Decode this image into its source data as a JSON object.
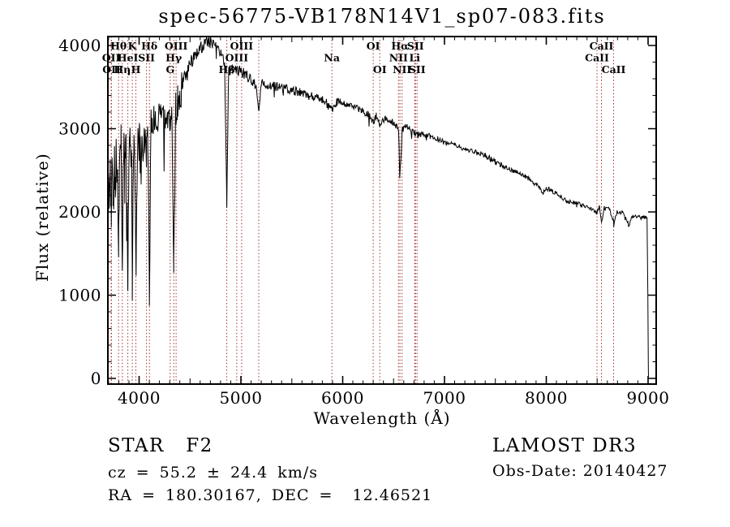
{
  "plot": {
    "title": "spec-56775-VB178N14V1_sp07-083.fits",
    "xlabel": "Wavelength (Å)",
    "ylabel": "Flux (relative)"
  },
  "annotations": {
    "class_label": "STAR   F2",
    "cz_label": "cz = 55.2 ± 24.4 km/s",
    "radec_label": "RA = 180.30167, DEC =  12.46521",
    "survey_label": "LAMOST DR3",
    "obsdate_label": "Obs-Date: 20140427"
  },
  "chart_data": {
    "type": "line",
    "title": "spec-56775-VB178N14V1_sp07-083.fits",
    "xlabel": "Wavelength (Å)",
    "ylabel": "Flux (relative)",
    "x_range": [
      3693,
      9080
    ],
    "y_range": [
      -68,
      4107
    ],
    "x_ticks": [
      4000,
      5000,
      6000,
      7000,
      8000,
      9000
    ],
    "x_minor_tick_step": 100,
    "y_ticks": [
      0,
      1000,
      2000,
      3000,
      4000
    ],
    "y_minor_tick_step": 200,
    "grid": false,
    "legend": false,
    "line_marker_color": "#a03030",
    "series": [
      {
        "name": "flux",
        "color": "#000000",
        "points": [
          [
            3695,
            2150
          ],
          [
            3705,
            2300
          ],
          [
            3713,
            2500
          ],
          [
            3720,
            2100
          ],
          [
            3726,
            1900
          ],
          [
            3734,
            2550
          ],
          [
            3742,
            2250
          ],
          [
            3750,
            1950
          ],
          [
            3758,
            2600
          ],
          [
            3766,
            2300
          ],
          [
            3774,
            2650
          ],
          [
            3782,
            2450
          ],
          [
            3790,
            2250
          ],
          [
            3798,
            1500
          ],
          [
            3806,
            2500
          ],
          [
            3814,
            2700
          ],
          [
            3822,
            2800
          ],
          [
            3828,
            2350
          ],
          [
            3835,
            1080
          ],
          [
            3843,
            2500
          ],
          [
            3851,
            2750
          ],
          [
            3859,
            2600
          ],
          [
            3867,
            2800
          ],
          [
            3875,
            2650
          ],
          [
            3882,
            2250
          ],
          [
            3889,
            980
          ],
          [
            3897,
            2400
          ],
          [
            3905,
            2700
          ],
          [
            3913,
            2850
          ],
          [
            3921,
            2700
          ],
          [
            3927,
            2450
          ],
          [
            3933,
            1020
          ],
          [
            3940,
            2250
          ],
          [
            3948,
            2750
          ],
          [
            3956,
            2600
          ],
          [
            3963,
            2250
          ],
          [
            3970,
            1140
          ],
          [
            3978,
            2400
          ],
          [
            3986,
            2800
          ],
          [
            3994,
            2900
          ],
          [
            4002,
            2850
          ],
          [
            4010,
            2700
          ],
          [
            4020,
            2550
          ],
          [
            4030,
            2750
          ],
          [
            4040,
            2850
          ],
          [
            4050,
            2800
          ],
          [
            4060,
            2870
          ],
          [
            4072,
            2750
          ],
          [
            4085,
            2950
          ],
          [
            4101,
            950
          ],
          [
            4115,
            3100
          ],
          [
            4130,
            3150
          ],
          [
            4160,
            3120
          ],
          [
            4200,
            3150
          ],
          [
            4240,
            3100
          ],
          [
            4280,
            3150
          ],
          [
            4305,
            3000
          ],
          [
            4320,
            3180
          ],
          [
            4340,
            1250
          ],
          [
            4360,
            3250
          ],
          [
            4380,
            3320
          ],
          [
            4400,
            3420
          ],
          [
            4430,
            3550
          ],
          [
            4460,
            3680
          ],
          [
            4490,
            3760
          ],
          [
            4520,
            3820
          ],
          [
            4550,
            3870
          ],
          [
            4600,
            3950
          ],
          [
            4650,
            4030
          ],
          [
            4680,
            4060
          ],
          [
            4720,
            4020
          ],
          [
            4760,
            3970
          ],
          [
            4800,
            3900
          ],
          [
            4840,
            3780
          ],
          [
            4861,
            2100
          ],
          [
            4880,
            3760
          ],
          [
            4910,
            3730
          ],
          [
            4950,
            3700
          ],
          [
            5000,
            3680
          ],
          [
            5050,
            3640
          ],
          [
            5100,
            3600
          ],
          [
            5150,
            3520
          ],
          [
            5175,
            3230
          ],
          [
            5200,
            3560
          ],
          [
            5260,
            3530
          ],
          [
            5320,
            3510
          ],
          [
            5400,
            3500
          ],
          [
            5480,
            3470
          ],
          [
            5560,
            3440
          ],
          [
            5640,
            3410
          ],
          [
            5720,
            3380
          ],
          [
            5800,
            3360
          ],
          [
            5894,
            3230
          ],
          [
            5950,
            3330
          ],
          [
            6030,
            3300
          ],
          [
            6100,
            3270
          ],
          [
            6180,
            3220
          ],
          [
            6250,
            3180
          ],
          [
            6300,
            3080
          ],
          [
            6330,
            3150
          ],
          [
            6364,
            3060
          ],
          [
            6420,
            3120
          ],
          [
            6480,
            3090
          ],
          [
            6548,
            3000
          ],
          [
            6563,
            2430
          ],
          [
            6583,
            2980
          ],
          [
            6620,
            3030
          ],
          [
            6660,
            3000
          ],
          [
            6708,
            2960
          ],
          [
            6716,
            2930
          ],
          [
            6731,
            2920
          ],
          [
            6790,
            2940
          ],
          [
            6860,
            2910
          ],
          [
            6930,
            2880
          ],
          [
            7000,
            2830
          ],
          [
            7100,
            2800
          ],
          [
            7200,
            2760
          ],
          [
            7300,
            2720
          ],
          [
            7400,
            2680
          ],
          [
            7500,
            2600
          ],
          [
            7600,
            2540
          ],
          [
            7700,
            2480
          ],
          [
            7800,
            2420
          ],
          [
            7900,
            2340
          ],
          [
            7968,
            2230
          ],
          [
            8000,
            2290
          ],
          [
            8100,
            2220
          ],
          [
            8200,
            2130
          ],
          [
            8300,
            2100
          ],
          [
            8400,
            2070
          ],
          [
            8498,
            1990
          ],
          [
            8520,
            2070
          ],
          [
            8542,
            1870
          ],
          [
            8570,
            2050
          ],
          [
            8620,
            2030
          ],
          [
            8662,
            1880
          ],
          [
            8700,
            2010
          ],
          [
            8750,
            1990
          ],
          [
            8810,
            1840
          ],
          [
            8850,
            1960
          ],
          [
            8900,
            1940
          ],
          [
            8950,
            1930
          ],
          [
            8990,
            1945
          ],
          [
            8998,
            1000
          ],
          [
            9003,
            150
          ],
          [
            9004,
            20
          ]
        ]
      }
    ],
    "noise_segments": [
      [
        3693,
        4055,
        270
      ],
      [
        4055,
        4120,
        220
      ],
      [
        4120,
        4420,
        220
      ],
      [
        4420,
        4750,
        85
      ],
      [
        4750,
        5150,
        70
      ],
      [
        5150,
        5950,
        55
      ],
      [
        5950,
        6750,
        42
      ],
      [
        6750,
        7650,
        33
      ],
      [
        7650,
        8996,
        27
      ],
      [
        8996,
        9004,
        25
      ]
    ],
    "spectral_lines": [
      {
        "wavelength": 3726,
        "label": "OII",
        "row": 2
      },
      {
        "wavelength": 3729,
        "label": "OII",
        "row": 3
      },
      {
        "wavelength": 3798,
        "label": "Hθ",
        "row": 1
      },
      {
        "wavelength": 3835,
        "label": "Hη",
        "row": 3
      },
      {
        "wavelength": 3889,
        "label": "HeI",
        "row": 2
      },
      {
        "wavelength": 3933,
        "label": "K",
        "row": 1
      },
      {
        "wavelength": 3968,
        "label": "H",
        "row": 3
      },
      {
        "wavelength": 4072,
        "label": "SII",
        "row": 2
      },
      {
        "wavelength": 4101,
        "label": "Hδ",
        "row": 1
      },
      {
        "wavelength": 4305,
        "label": "G",
        "row": 3
      },
      {
        "wavelength": 4340,
        "label": "Hγ",
        "row": 2
      },
      {
        "wavelength": 4363,
        "label": "OIII",
        "row": 1
      },
      {
        "wavelength": 4861,
        "label": "Hβ",
        "row": 3
      },
      {
        "wavelength": 4959,
        "label": "OIII",
        "row": 2
      },
      {
        "wavelength": 5007,
        "label": "OIII",
        "row": 1
      },
      {
        "wavelength": 5175,
        "label": "",
        "row": 2
      },
      {
        "wavelength": 5894,
        "label": "Na",
        "row": 2
      },
      {
        "wavelength": 6300,
        "label": "OI",
        "row": 1
      },
      {
        "wavelength": 6364,
        "label": "OI",
        "row": 3
      },
      {
        "wavelength": 6548,
        "label": "NII",
        "row": 2
      },
      {
        "wavelength": 6563,
        "label": "Hα",
        "row": 1
      },
      {
        "wavelength": 6583,
        "label": "NII",
        "row": 3
      },
      {
        "wavelength": 6708,
        "label": "Li",
        "row": 2
      },
      {
        "wavelength": 6716,
        "label": "SII",
        "row": 1
      },
      {
        "wavelength": 6731,
        "label": "SII",
        "row": 3
      },
      {
        "wavelength": 8498,
        "label": "CaII",
        "row": 2
      },
      {
        "wavelength": 8542,
        "label": "CaII",
        "row": 1
      },
      {
        "wavelength": 8662,
        "label": "CaII",
        "row": 3
      }
    ]
  }
}
